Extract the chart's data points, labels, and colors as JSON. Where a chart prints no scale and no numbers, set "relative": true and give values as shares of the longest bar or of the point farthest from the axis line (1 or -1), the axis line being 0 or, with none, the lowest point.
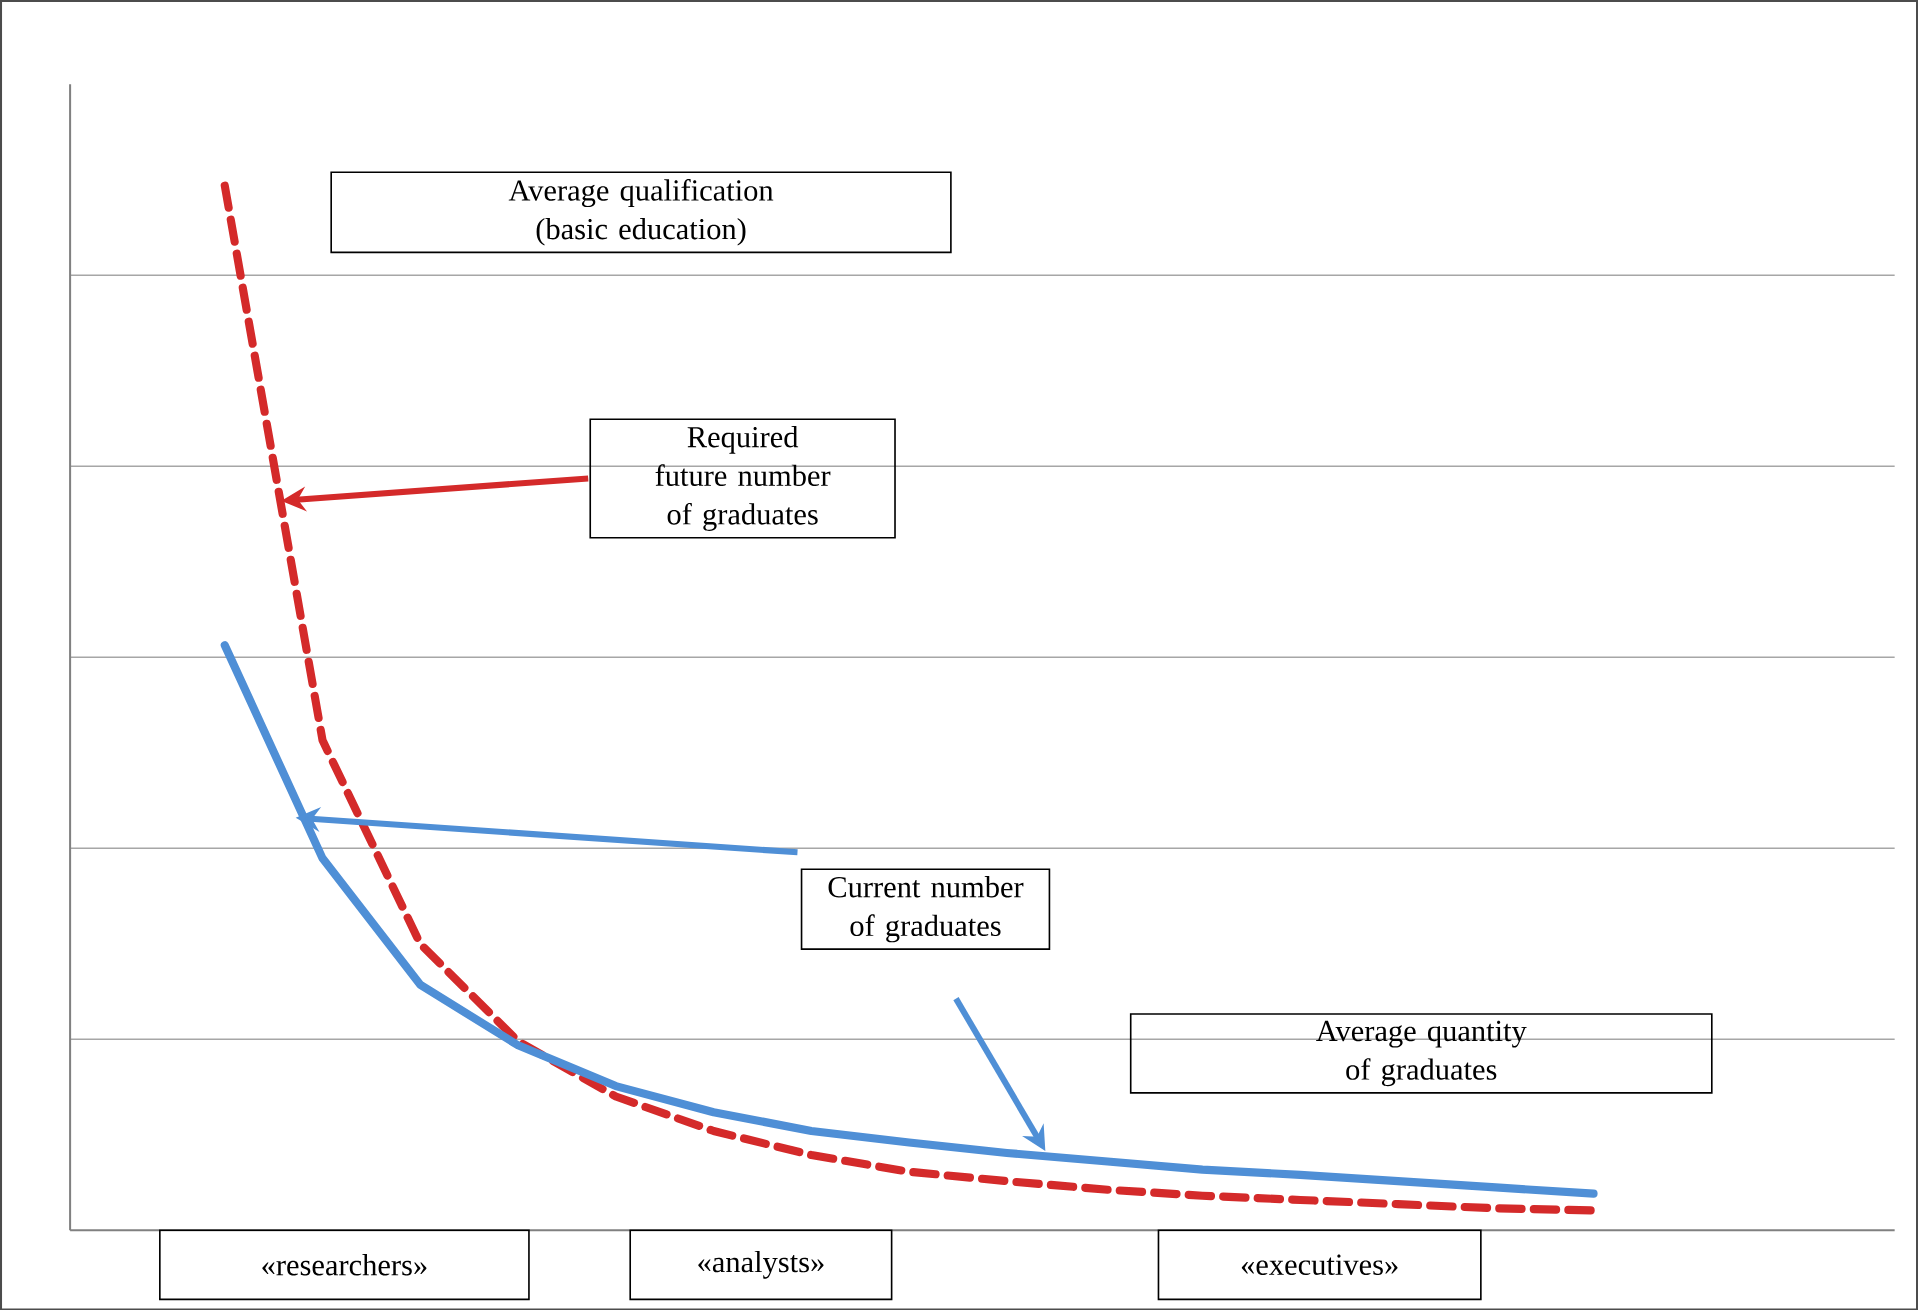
{
  "chart_data": {
    "type": "line",
    "relative": true,
    "grid": "y",
    "tick_labels": false,
    "categories": [
      null,
      null,
      null,
      null,
      null,
      null,
      null,
      null,
      null,
      null,
      null,
      null,
      null,
      null,
      null
    ],
    "series": [
      {
        "color": "#d42a2a",
        "line_style": "dashed",
        "values": [
          1.0,
          0.469,
          0.274,
          0.181,
          0.128,
          0.095,
          0.072,
          0.056,
          0.047,
          0.039,
          0.033,
          0.029,
          0.025,
          0.021,
          0.019
        ]
      },
      {
        "color": "#4f8fd6",
        "line_style": "solid",
        "values": [
          0.56,
          0.356,
          0.235,
          0.177,
          0.138,
          0.113,
          0.095,
          0.084,
          0.074,
          0.066,
          0.058,
          0.053,
          0.047,
          0.041,
          0.035
        ]
      }
    ],
    "annotations": [
      "Average qualification (basic education)",
      "Required future number of graduates",
      "Current number of graduates",
      "Average quantity of graduates",
      "«researchers»",
      "«analysts»",
      "«executives»"
    ]
  }
}
